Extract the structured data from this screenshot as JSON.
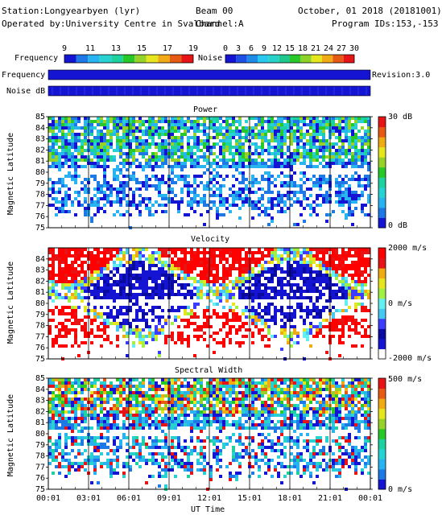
{
  "header": {
    "station": "Station:Longyearbyen (lyr)",
    "operator": "Operated by:University Centre in Svalbard",
    "beam": "Beam 00",
    "channel": "Channel:A",
    "date": "October, 01 2018 (20181001)",
    "program": "Program IDs:153,-153"
  },
  "scales": {
    "frequency_label": "Frequency",
    "frequency_ticks": [
      "9",
      "11",
      "13",
      "15",
      "17",
      "19"
    ],
    "frequency_colors": [
      "#1414d2",
      "#1e78e6",
      "#28b4f0",
      "#28d2d2",
      "#1ed2a0",
      "#28c828",
      "#96d228",
      "#e6e61e",
      "#f0aa14",
      "#e65a14",
      "#e61414"
    ],
    "noise_label": "Noise",
    "noise_ticks": [
      "0",
      "3",
      "6",
      "9",
      "12",
      "15",
      "18",
      "21",
      "24",
      "27",
      "30"
    ],
    "noise_colors": [
      "#1414d2",
      "#1e50e6",
      "#1e8ce6",
      "#28c8f0",
      "#28d2c8",
      "#1ec88c",
      "#28c828",
      "#8cd228",
      "#e6e61e",
      "#f0aa14",
      "#e65a14",
      "#e61414"
    ]
  },
  "status": {
    "frequency_label": "Frequency",
    "noise_label": "Noise dB",
    "revision": "Revision:3.0",
    "bar_color": "#1414d2"
  },
  "chart_data": [
    {
      "type": "heatmap",
      "title": "Power",
      "ylabel": "Magnetic Latitude",
      "xlabel": "UT Time",
      "ylim": [
        75,
        85
      ],
      "yticks": [
        "75",
        "76",
        "77",
        "78",
        "79",
        "80",
        "81",
        "82",
        "83",
        "84",
        "85"
      ],
      "xlim": [
        "00:01",
        "00:01"
      ],
      "xticks": [
        "00:01",
        "03:01",
        "06:01",
        "09:01",
        "12:01",
        "15:01",
        "18:01",
        "21:01",
        "00:01"
      ],
      "colorbar": {
        "max": "30 dB",
        "min": "0 dB"
      }
    },
    {
      "type": "heatmap",
      "title": "Velocity",
      "ylabel": "Magnetic Latitude",
      "xlabel": "UT Time",
      "ylim": [
        75,
        85
      ],
      "yticks": [
        "75",
        "76",
        "77",
        "78",
        "79",
        "80",
        "81",
        "82",
        "83",
        "84"
      ],
      "xlim": [
        "00:01",
        "00:01"
      ],
      "xticks": [
        "00:01",
        "03:01",
        "06:01",
        "09:01",
        "12:01",
        "15:01",
        "18:01",
        "21:01",
        "00:01"
      ],
      "colorbar": {
        "max": "2000 m/s",
        "mid": "0 m/s",
        "min": "-2000 m/s"
      }
    },
    {
      "type": "heatmap",
      "title": "Spectral Width",
      "ylabel": "Magnetic Latitude",
      "xlabel": "UT Time",
      "ylim": [
        75,
        85
      ],
      "yticks": [
        "75",
        "76",
        "77",
        "78",
        "79",
        "80",
        "81",
        "82",
        "83",
        "84",
        "85"
      ],
      "xlim": [
        "00:01",
        "00:01"
      ],
      "xticks": [
        "00:01",
        "03:01",
        "06:01",
        "09:01",
        "12:01",
        "15:01",
        "18:01",
        "21:01",
        "00:01"
      ],
      "colorbar": {
        "max": "500 m/s",
        "min": "0 m/s"
      }
    }
  ],
  "footer": {
    "xticks": [
      "00:01",
      "03:01",
      "06:01",
      "09:01",
      "12:01",
      "15:01",
      "18:01",
      "21:01",
      "00:01"
    ],
    "xlabel": "UT Time"
  },
  "colormaps": {
    "power": [
      "#1414d2",
      "#1e78e6",
      "#28b4f0",
      "#28d2d2",
      "#1ed2a0",
      "#28c828",
      "#96d228",
      "#e6e61e",
      "#f0aa14",
      "#e65a14",
      "#e61414"
    ],
    "velocity": [
      "#ffffff",
      "#1414d2",
      "#0a0aa0",
      "#3c3cff",
      "#46c8f0",
      "#64f0f0",
      "#a0f046",
      "#e6e61e",
      "#f0aa14",
      "#e61414",
      "#ff0000"
    ],
    "width": [
      "#1414d2",
      "#1e78e6",
      "#28b4f0",
      "#28d2d2",
      "#1ed2a0",
      "#28c828",
      "#96d228",
      "#e6e61e",
      "#f0aa14",
      "#e65a14",
      "#e61414"
    ]
  }
}
